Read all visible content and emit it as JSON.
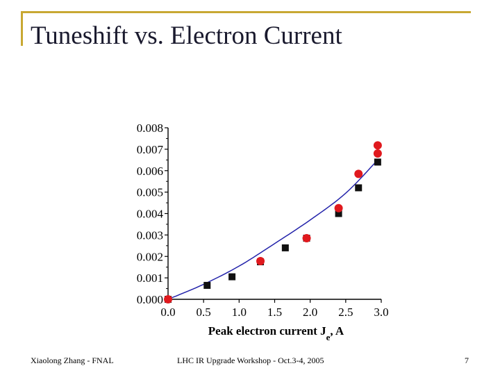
{
  "slide": {
    "title": "Tuneshift vs. Electron Current",
    "accent_color": "#c8a832"
  },
  "footer": {
    "author": "Xiaolong Zhang - FNAL",
    "event": "LHC IR Upgrade Workshop - Oct.3-4, 2005",
    "page_number": "7"
  },
  "chart_data": {
    "type": "scatter",
    "xlabel": "Peak electron current J",
    "xlabel_sub": "e",
    "xlabel_suffix": ", A",
    "ylabel": "",
    "xlim": [
      0.0,
      3.0
    ],
    "ylim": [
      0.0,
      0.008
    ],
    "x_ticks": [
      "0.0",
      "0.5",
      "1.0",
      "1.5",
      "2.0",
      "2.5",
      "3.0"
    ],
    "y_ticks": [
      "0.000",
      "0.001",
      "0.002",
      "0.003",
      "0.004",
      "0.005",
      "0.006",
      "0.007",
      "0.008"
    ],
    "grid": false,
    "series": [
      {
        "marker": "square",
        "color": "#111111",
        "points": [
          [
            0.0,
            0.0
          ],
          [
            0.55,
            0.00065
          ],
          [
            0.9,
            0.00105
          ],
          [
            1.3,
            0.00175
          ],
          [
            1.65,
            0.0024
          ],
          [
            1.95,
            0.00285
          ],
          [
            2.4,
            0.004
          ],
          [
            2.68,
            0.0052
          ],
          [
            2.95,
            0.0064
          ]
        ]
      },
      {
        "marker": "circle",
        "color": "#e0191e",
        "points": [
          [
            0.0,
            0.0
          ],
          [
            1.3,
            0.00178
          ],
          [
            1.95,
            0.00285
          ],
          [
            2.4,
            0.00425
          ],
          [
            2.68,
            0.00585
          ],
          [
            2.95,
            0.0068
          ],
          [
            2.95,
            0.00718
          ]
        ]
      },
      {
        "type": "line",
        "color": "#2222aa",
        "points": [
          [
            0.0,
            0.0
          ],
          [
            0.5,
            0.0007
          ],
          [
            1.0,
            0.00155
          ],
          [
            1.5,
            0.0026
          ],
          [
            2.0,
            0.0037
          ],
          [
            2.5,
            0.00495
          ],
          [
            2.95,
            0.0065
          ]
        ]
      }
    ]
  }
}
